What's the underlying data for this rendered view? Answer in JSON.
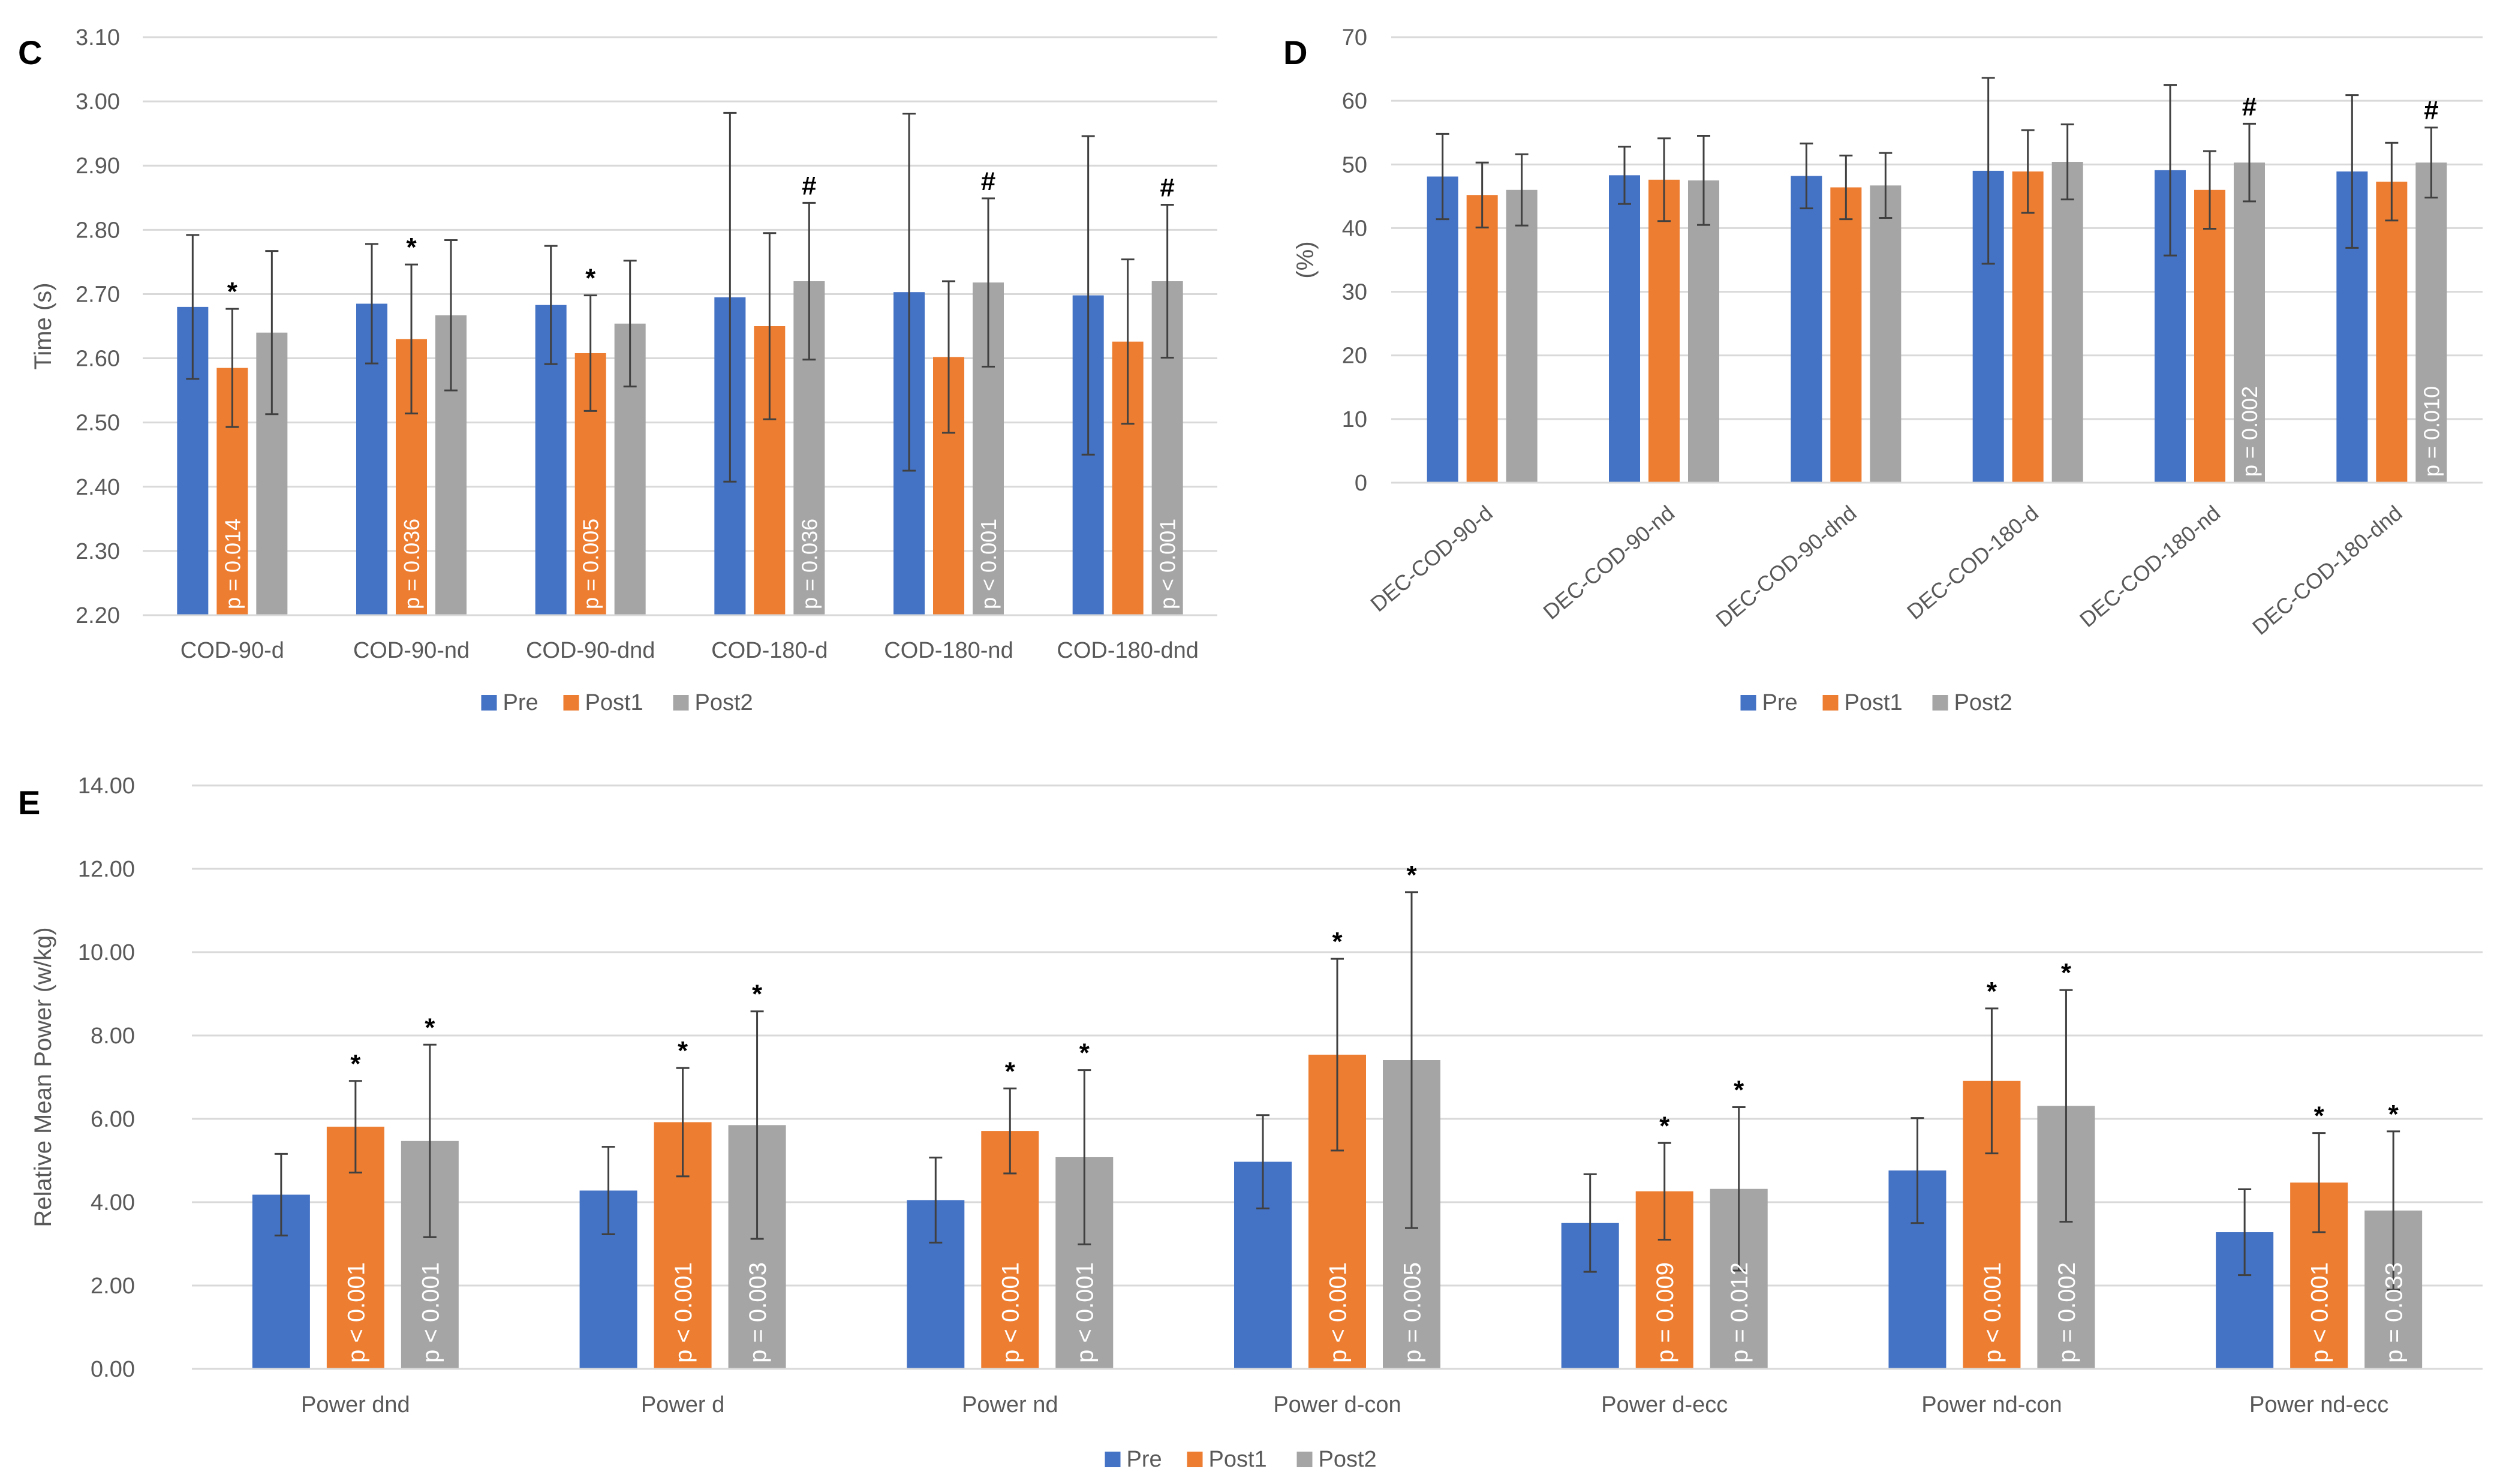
{
  "colors": {
    "Pre": "#4472C4",
    "Post1": "#ED7D31",
    "Post2": "#A5A5A5",
    "grid": "#D9D9D9",
    "axis_text": "#595959",
    "error": "#404040"
  },
  "chart_data": [
    {
      "panel": "C",
      "type": "bar",
      "title": "",
      "xlabel": "",
      "ylabel": "Time (s)",
      "ylim": [
        2.2,
        3.1
      ],
      "ytick_step": 0.1,
      "ytick_decimals": 2,
      "ytick_labels": [
        "2.20",
        "2.30",
        "2.40",
        "2.50",
        "2.60",
        "2.70",
        "2.80",
        "2.90",
        "3.00",
        "3.10"
      ],
      "categories": [
        "COD-90-d",
        "COD-90-nd",
        "COD-90-dnd",
        "COD-180-d",
        "COD-180-nd",
        "COD-180-dnd"
      ],
      "legend": {
        "position": "bottom",
        "entries": [
          "Pre",
          "Post1",
          "Post2"
        ]
      },
      "grid": true,
      "series": [
        {
          "name": "Pre",
          "values": [
            2.68,
            2.685,
            2.683,
            2.695,
            2.703,
            2.698
          ],
          "errors": [
            0.112,
            0.093,
            0.092,
            0.287,
            0.278,
            0.248
          ]
        },
        {
          "name": "Post1",
          "values": [
            2.585,
            2.63,
            2.608,
            2.65,
            2.602,
            2.626
          ],
          "errors": [
            0.092,
            0.116,
            0.09,
            0.145,
            0.118,
            0.128
          ]
        },
        {
          "name": "Post2",
          "values": [
            2.64,
            2.667,
            2.654,
            2.72,
            2.718,
            2.72
          ],
          "errors": [
            0.127,
            0.117,
            0.098,
            0.122,
            0.131,
            0.119
          ]
        }
      ],
      "markers": {
        "Pre": [
          "",
          "",
          "",
          "",
          "",
          ""
        ],
        "Post1": [
          "*",
          "*",
          "*",
          "",
          "",
          ""
        ],
        "Post2": [
          "",
          "",
          "",
          "#",
          "#",
          "#"
        ]
      },
      "bar_labels": {
        "Pre": [
          "",
          "",
          "",
          "",
          "",
          ""
        ],
        "Post1": [
          "p = 0.014",
          "p = 0.036",
          "p = 0.005",
          "",
          "",
          ""
        ],
        "Post2": [
          "",
          "",
          "",
          "p = 0.036",
          "p < 0.001",
          "p < 0.001"
        ]
      }
    },
    {
      "panel": "D",
      "type": "bar",
      "title": "",
      "xlabel": "",
      "ylabel": "(%)",
      "ylim": [
        0,
        70
      ],
      "ytick_step": 10,
      "ytick_decimals": 0,
      "ytick_labels": [
        "0",
        "10",
        "20",
        "30",
        "40",
        "50",
        "60",
        "70"
      ],
      "categories": [
        "DEC-COD-90-d",
        "DEC-COD-90-nd",
        "DEC-COD-90-dnd",
        "DEC-COD-180-d",
        "DEC-COD-180-nd",
        "DEC-COD-180-dnd"
      ],
      "legend": {
        "position": "bottom",
        "entries": [
          "Pre",
          "Post1",
          "Post2"
        ]
      },
      "grid": true,
      "series": [
        {
          "name": "Pre",
          "values": [
            48.1,
            48.3,
            48.2,
            49.0,
            49.1,
            48.9
          ],
          "errors": [
            6.7,
            4.5,
            5.1,
            14.6,
            13.4,
            12.0
          ]
        },
        {
          "name": "Post1",
          "values": [
            45.2,
            47.6,
            46.4,
            48.9,
            46.0,
            47.3
          ],
          "errors": [
            5.1,
            6.5,
            5.0,
            6.5,
            6.1,
            6.1
          ]
        },
        {
          "name": "Post2",
          "values": [
            46.0,
            47.5,
            46.7,
            50.4,
            50.3,
            50.3
          ],
          "errors": [
            5.6,
            7.0,
            5.1,
            5.9,
            6.1,
            5.5
          ]
        }
      ],
      "markers": {
        "Pre": [
          "",
          "",
          "",
          "",
          "",
          ""
        ],
        "Post1": [
          "",
          "",
          "",
          "",
          "",
          ""
        ],
        "Post2": [
          "",
          "",
          "",
          "",
          "#",
          "#"
        ]
      },
      "bar_labels": {
        "Pre": [
          "",
          "",
          "",
          "",
          "",
          ""
        ],
        "Post1": [
          "",
          "",
          "",
          "",
          "",
          ""
        ],
        "Post2": [
          "",
          "",
          "",
          "",
          "p = 0.002",
          "p = 0.010"
        ]
      }
    },
    {
      "panel": "E",
      "type": "bar",
      "title": "",
      "xlabel": "",
      "ylabel": "Relative Mean Power (w/kg)",
      "ylim": [
        0,
        14
      ],
      "ytick_step": 2,
      "ytick_decimals": 2,
      "ytick_labels": [
        "0.00",
        "2.00",
        "4.00",
        "6.00",
        "8.00",
        "10.00",
        "12.00",
        "14.00"
      ],
      "categories": [
        "Power dnd",
        "Power d",
        "Power nd",
        "Power d-con",
        "Power d-ecc",
        "Power nd-con",
        "Power nd-ecc"
      ],
      "legend": {
        "position": "bottom",
        "entries": [
          "Pre",
          "Post1",
          "Post2"
        ]
      },
      "grid": true,
      "series": [
        {
          "name": "Pre",
          "values": [
            4.18,
            4.28,
            4.05,
            4.97,
            3.5,
            4.76,
            3.28
          ],
          "errors": [
            0.98,
            1.05,
            1.02,
            1.12,
            1.17,
            1.26,
            1.03
          ]
        },
        {
          "name": "Post1",
          "values": [
            5.81,
            5.92,
            5.71,
            7.54,
            4.26,
            6.91,
            4.47
          ],
          "errors": [
            1.1,
            1.3,
            1.02,
            2.3,
            1.16,
            1.74,
            1.19
          ]
        },
        {
          "name": "Post2",
          "values": [
            5.47,
            5.85,
            5.08,
            7.41,
            4.32,
            6.31,
            3.8
          ],
          "errors": [
            2.31,
            2.73,
            2.09,
            4.03,
            1.96,
            2.78,
            1.9
          ]
        }
      ],
      "markers": {
        "Pre": [
          "",
          "",
          "",
          "",
          "",
          "",
          ""
        ],
        "Post1": [
          "*",
          "*",
          "*",
          "*",
          "*",
          "*",
          "*"
        ],
        "Post2": [
          "*",
          "*",
          "*",
          "*",
          "*",
          "*",
          "*"
        ]
      },
      "bar_labels": {
        "Pre": [
          "",
          "",
          "",
          "",
          "",
          "",
          ""
        ],
        "Post1": [
          "p < 0.001",
          "p < 0.001",
          "p < 0.001",
          "p < 0.001",
          "p = 0.009",
          "p < 0.001",
          "p < 0.001"
        ],
        "Post2": [
          "p < 0.001",
          "p = 0.003",
          "p < 0.001",
          "p = 0.005",
          "p = 0.012",
          "p = 0.002",
          "p = 0.033"
        ]
      }
    }
  ]
}
